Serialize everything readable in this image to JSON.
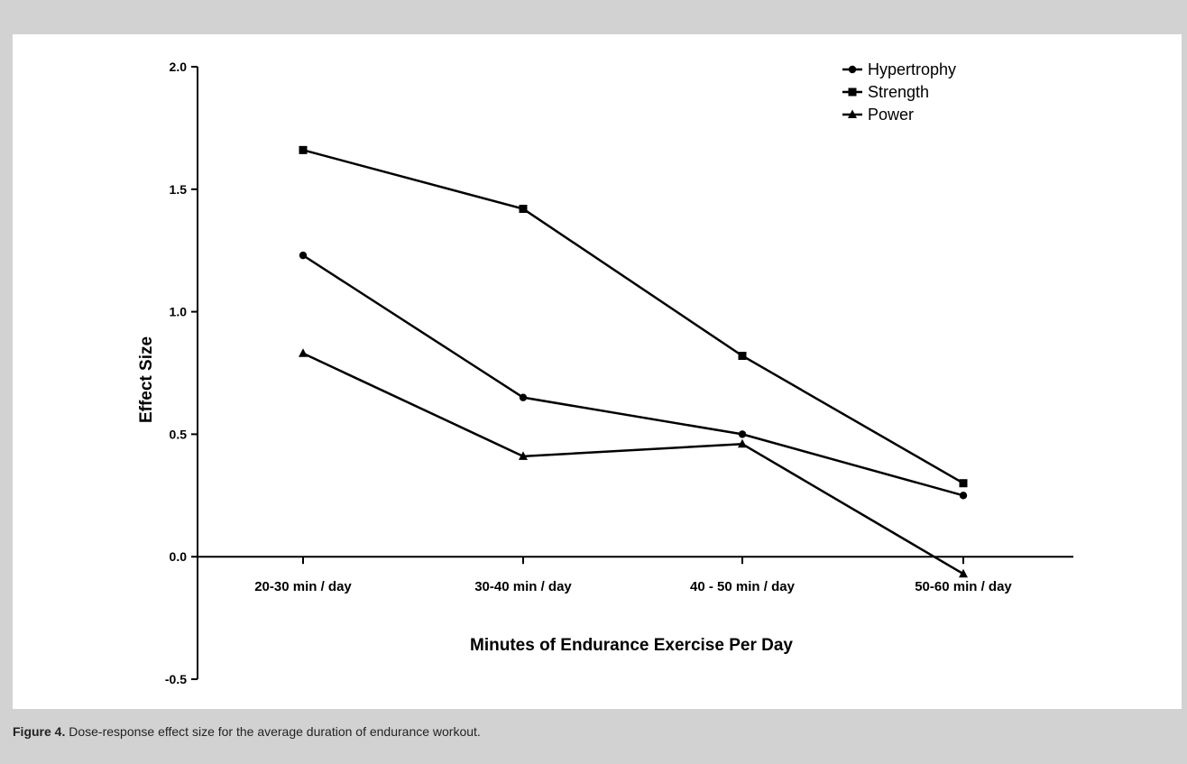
{
  "caption": {
    "label": "Figure 4.",
    "text": " Dose-response effect size for the average duration of endurance workout."
  },
  "chart_data": {
    "type": "line",
    "title": "",
    "xlabel": "Minutes of Endurance Exercise Per Day",
    "ylabel": "Effect Size",
    "categories": [
      "20-30 min / day",
      "30-40 min / day",
      "40 - 50 min / day",
      "50-60 min / day"
    ],
    "ylim": [
      -0.5,
      2.0
    ],
    "yticks": [
      -0.5,
      0.0,
      0.5,
      1.0,
      1.5,
      2.0
    ],
    "ytick_labels": [
      "-0.5",
      "0.0",
      "0.5",
      "1.0",
      "1.5",
      "2.0"
    ],
    "grid": false,
    "legend_position": "top-right",
    "series": [
      {
        "name": "Hypertrophy",
        "marker": "circle",
        "values": [
          1.23,
          0.65,
          0.5,
          0.25
        ]
      },
      {
        "name": "Strength",
        "marker": "square",
        "values": [
          1.66,
          1.42,
          0.82,
          0.3
        ]
      },
      {
        "name": "Power",
        "marker": "triangle",
        "values": [
          0.83,
          0.41,
          0.46,
          -0.07
        ]
      }
    ],
    "line_color": "#000000"
  }
}
